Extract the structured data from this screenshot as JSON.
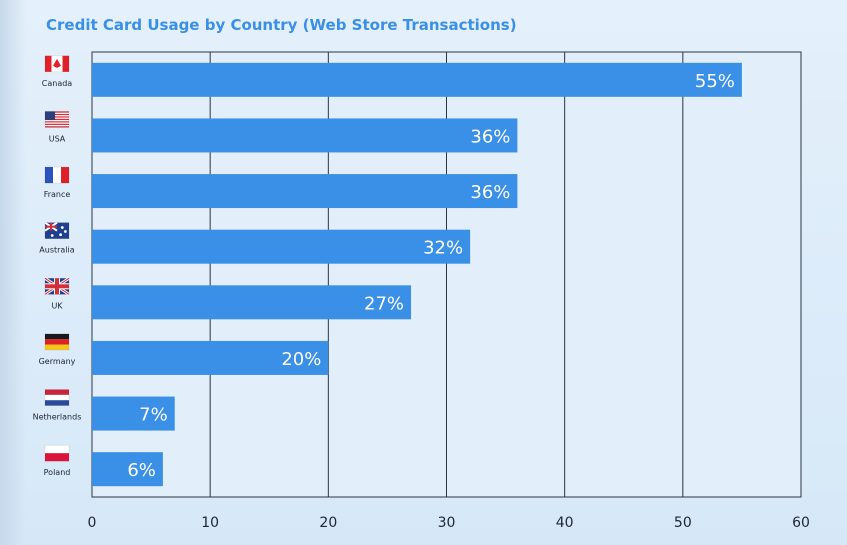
{
  "chart_data": {
    "type": "bar",
    "orientation": "horizontal",
    "title": "Credit Card Usage by Country (Web Store Transactions)",
    "categories": [
      "Canada",
      "USA",
      "France",
      "Australia",
      "UK",
      "Germany",
      "Netherlands",
      "Poland"
    ],
    "values": [
      55,
      36,
      36,
      32,
      27,
      20,
      7,
      6
    ],
    "value_labels": [
      "55%",
      "36%",
      "36%",
      "32%",
      "27%",
      "20%",
      "7%",
      "6%"
    ],
    "category_icons": [
      "canada-flag-icon",
      "usa-flag-icon",
      "france-flag-icon",
      "australia-flag-icon",
      "uk-flag-icon",
      "germany-flag-icon",
      "netherlands-flag-icon",
      "poland-flag-icon"
    ],
    "xlim": [
      0,
      60
    ],
    "xticks": [
      "0",
      "10",
      "20",
      "30",
      "40",
      "50",
      "60"
    ],
    "grid": true,
    "bar_color": "#3a8fe6",
    "label_color": "#ffffff"
  }
}
